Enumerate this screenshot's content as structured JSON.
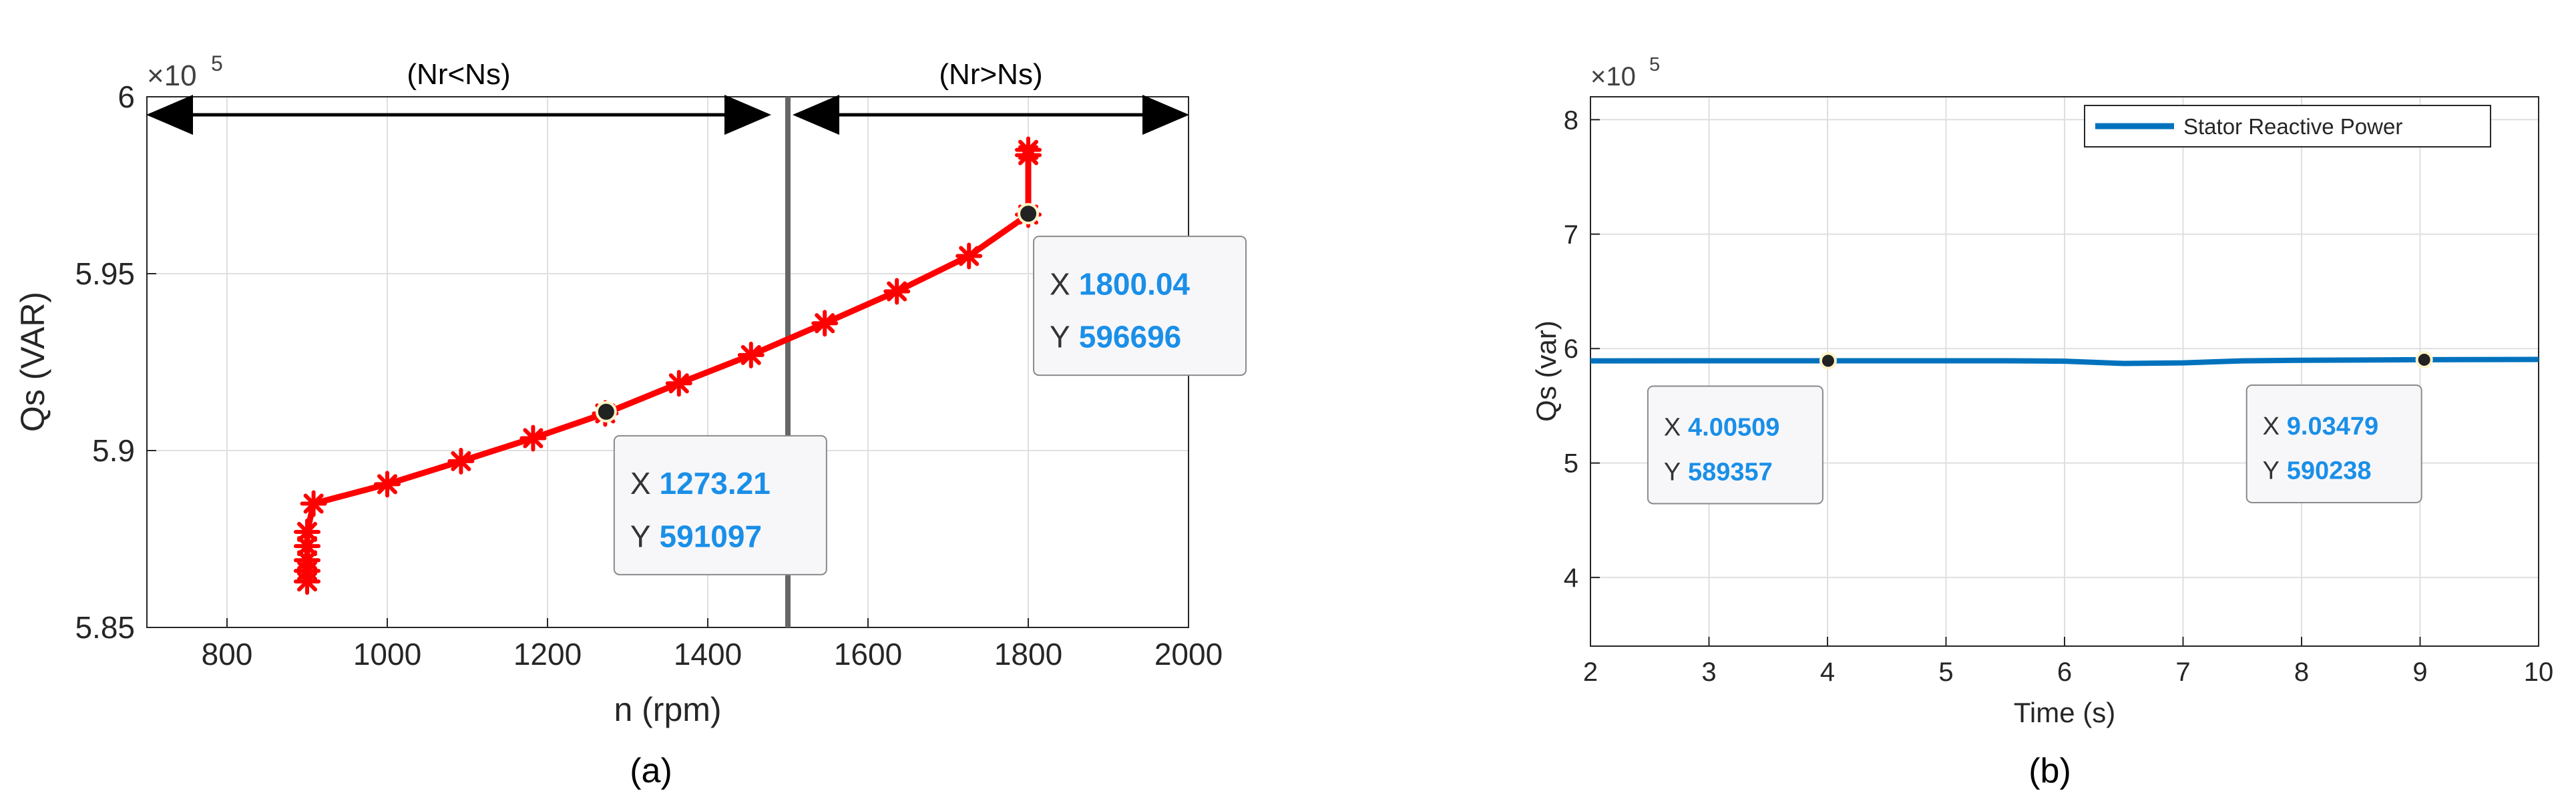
{
  "charts": {
    "a": {
      "caption": "(a)",
      "chart_data": {
        "type": "line",
        "xlabel": "n (rpm)",
        "ylabel": "Qs (VAR)",
        "xlim": [
          700,
          2000
        ],
        "ylim": [
          5.85,
          6.0
        ],
        "exponent_label": "×10",
        "exponent_power": "5",
        "xticks": [
          "800",
          "1000",
          "1200",
          "1400",
          "1600",
          "1800",
          "2000"
        ],
        "yticks": [
          "5.85",
          "5.9",
          "5.95",
          "6"
        ],
        "grid": true,
        "series": [
          {
            "color": "#ff0000",
            "marker": "asterisk",
            "x": [
              900,
              900,
              900,
              900,
              900,
              908,
              1000,
              1092,
              1182,
              1272,
              1364,
              1454,
              1546,
              1636,
              1726,
              1800,
              1800,
              1800
            ],
            "y": [
              5.863,
              5.866,
              5.869,
              5.873,
              5.877,
              5.885,
              5.8905,
              5.897,
              5.9035,
              5.9105,
              5.919,
              5.927,
              5.936,
              5.945,
              5.955,
              5.9667,
              5.9835,
              5.985
            ]
          }
        ],
        "vline": {
          "x": 1500,
          "color": "#666666"
        },
        "regions": [
          {
            "label": "(Nr<Ns)",
            "from": 700,
            "to": 1500
          },
          {
            "label": "(Nr>Ns)",
            "from": 1500,
            "to": 2000
          }
        ],
        "datatips": [
          {
            "x": 1273.21,
            "y": 5.91097,
            "x_text": "1273.21",
            "y_text": "591097",
            "x_prefix": "X",
            "y_prefix": "Y"
          },
          {
            "x": 1800.04,
            "y": 5.96696,
            "x_text": "1800.04",
            "y_text": "596696",
            "x_prefix": "X",
            "y_prefix": "Y"
          }
        ]
      }
    },
    "b": {
      "caption": "(b)",
      "chart_data": {
        "type": "line",
        "xlabel": "Time (s)",
        "ylabel": "Qs (var)",
        "xlim": [
          2,
          10
        ],
        "ylim": [
          3.4,
          8.2
        ],
        "exponent_label": "×10",
        "exponent_power": "5",
        "xticks": [
          "2",
          "3",
          "4",
          "5",
          "6",
          "7",
          "8",
          "9",
          "10"
        ],
        "yticks": [
          "4",
          "5",
          "6",
          "7",
          "8"
        ],
        "grid": true,
        "legend": {
          "position": "top-right",
          "entries": [
            "Stator Reactive Power"
          ]
        },
        "series": [
          {
            "name": "Stator Reactive Power",
            "color": "#0072bd",
            "x": [
              2,
              3,
              4,
              5,
              5.5,
              6,
              6.5,
              7,
              7.5,
              8,
              9,
              10
            ],
            "y": [
              5.893,
              5.8935,
              5.8936,
              5.8935,
              5.8935,
              5.89,
              5.87,
              5.875,
              5.893,
              5.898,
              5.9024,
              5.905
            ]
          }
        ],
        "datatips": [
          {
            "x": 4.00509,
            "y": 5.89357,
            "x_text": "4.00509",
            "y_text": "589357",
            "x_prefix": "X",
            "y_prefix": "Y"
          },
          {
            "x": 9.03479,
            "y": 5.90238,
            "x_text": "9.03479",
            "y_text": "590238",
            "x_prefix": "X",
            "y_prefix": "Y"
          }
        ]
      }
    }
  }
}
